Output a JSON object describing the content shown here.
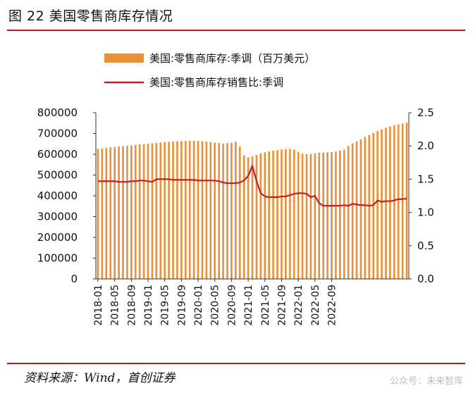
{
  "header": {
    "title": "图 22 美国零售商库存情况"
  },
  "footer": {
    "source": "资料来源：Wind，首创证券",
    "watermark": "公众号：未来智库"
  },
  "colors": {
    "bar": "#e8913c",
    "line": "#c0201e",
    "rule": "#b01e1e",
    "axis": "#333333"
  },
  "chart_data": {
    "type": "bar+line",
    "title": "图 22 美国零售商库存情况",
    "x_tick_labels": [
      "2018-01",
      "2018-05",
      "2018-09",
      "2019-01",
      "2019-05",
      "2019-09",
      "2020-01",
      "2020-05",
      "2020-09",
      "2021-01",
      "2021-05",
      "2021-09",
      "2022-01",
      "2022-05",
      "2022-09"
    ],
    "left_axis": {
      "ylim": [
        0,
        800000
      ],
      "ticks": [
        "0",
        "100000",
        "200000",
        "300000",
        "400000",
        "500000",
        "600000",
        "700000",
        "800000"
      ]
    },
    "right_axis": {
      "ylim": [
        0,
        2.5
      ],
      "ticks": [
        "0.0",
        "0.5",
        "1.0",
        "1.5",
        "2.0",
        "2.5"
      ]
    },
    "legend": [
      {
        "label": "美国:零售商库存:季调（百万美元）",
        "kind": "bar"
      },
      {
        "label": "美国:零售商库存销售比:季调",
        "kind": "line"
      }
    ],
    "series": [
      {
        "name": "美国:零售商库存:季调（百万美元）",
        "axis": "left",
        "values": [
          626000,
          628000,
          631000,
          633000,
          635000,
          637000,
          639000,
          641000,
          643000,
          645000,
          647000,
          649000,
          651000,
          653000,
          655000,
          657000,
          659000,
          660000,
          661000,
          662000,
          663000,
          664000,
          664000,
          665000,
          664000,
          663000,
          661000,
          659000,
          656000,
          654000,
          652000,
          653000,
          655000,
          660000,
          638000,
          595000,
          585000,
          590000,
          597000,
          604000,
          609000,
          613000,
          617000,
          620000,
          623000,
          625000,
          626000,
          622000,
          612000,
          603000,
          601000,
          602000,
          604000,
          607000,
          608000,
          609000,
          610000,
          613000,
          618000,
          622000,
          640000,
          652000,
          662000,
          672000,
          683000,
          693000,
          702000,
          712000,
          720000,
          728000,
          734000,
          740000,
          744000,
          748000,
          752000
        ]
      },
      {
        "name": "美国:零售商库存销售比:季调",
        "axis": "right",
        "values": [
          1.47,
          1.47,
          1.47,
          1.47,
          1.47,
          1.46,
          1.46,
          1.46,
          1.47,
          1.47,
          1.48,
          1.48,
          1.47,
          1.46,
          1.5,
          1.5,
          1.5,
          1.5,
          1.49,
          1.49,
          1.49,
          1.49,
          1.49,
          1.49,
          1.48,
          1.48,
          1.48,
          1.48,
          1.48,
          1.47,
          1.45,
          1.44,
          1.44,
          1.44,
          1.45,
          1.48,
          1.55,
          1.7,
          1.47,
          1.29,
          1.24,
          1.23,
          1.23,
          1.23,
          1.24,
          1.24,
          1.26,
          1.28,
          1.29,
          1.29,
          1.28,
          1.23,
          1.25,
          1.14,
          1.1,
          1.1,
          1.1,
          1.1,
          1.1,
          1.11,
          1.1,
          1.13,
          1.12,
          1.11,
          1.11,
          1.1,
          1.11,
          1.18,
          1.16,
          1.17,
          1.17,
          1.18,
          1.2,
          1.2,
          1.21
        ]
      }
    ]
  }
}
